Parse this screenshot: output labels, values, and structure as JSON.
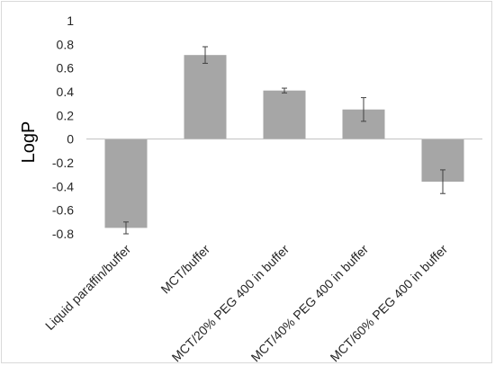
{
  "chart_data": {
    "type": "bar",
    "title": "",
    "xlabel": "",
    "ylabel": "LogP",
    "ylim": [
      -0.8,
      1
    ],
    "yticks": [
      1,
      0.8,
      0.6,
      0.4,
      0.2,
      0,
      -0.2,
      -0.4,
      -0.6,
      -0.8
    ],
    "ytick_labels": [
      "1",
      "0.8",
      "0.6",
      "0.4",
      "0.2",
      "0",
      "-0.2",
      "-0.4",
      "-0.6",
      "-0.8"
    ],
    "grid": false,
    "legend": "none",
    "categories": [
      "Liquid paraffin/buffer",
      "MCT/buffer",
      "MCT/20% PEG 400 in buffer",
      "MCT/40% PEG 400 in buffer",
      "MCT/60% PEG 400 in buffer"
    ],
    "values": [
      -0.75,
      0.71,
      0.41,
      0.25,
      -0.36
    ],
    "errors": [
      0.05,
      0.07,
      0.02,
      0.1,
      0.1
    ],
    "bar_color": "#a6a6a6",
    "error_color": "#404040",
    "axis_color": "#bfbfbf"
  }
}
